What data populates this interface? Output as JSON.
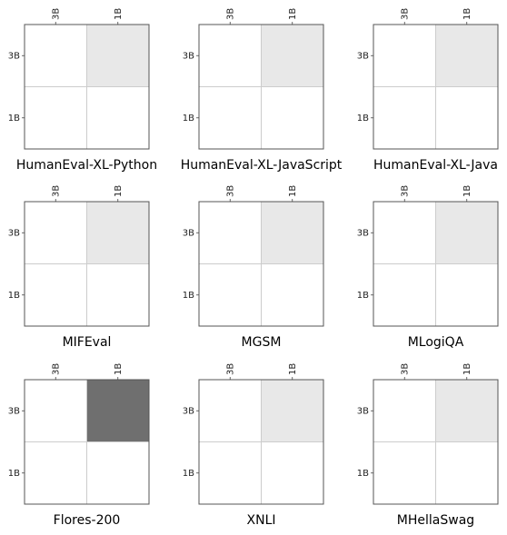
{
  "chart_data": [
    {
      "type": "heatmap",
      "title": "HumanEval-XL-Python",
      "x_categories": [
        "3B",
        "1B"
      ],
      "y_categories": [
        "3B",
        "1B"
      ],
      "values": [
        [
          0,
          0.12
        ],
        [
          0,
          0
        ]
      ],
      "grid": true
    },
    {
      "type": "heatmap",
      "title": "HumanEval-XL-JavaScript",
      "x_categories": [
        "3B",
        "1B"
      ],
      "y_categories": [
        "3B",
        "1B"
      ],
      "values": [
        [
          0,
          0.12
        ],
        [
          0,
          0
        ]
      ],
      "grid": true
    },
    {
      "type": "heatmap",
      "title": "HumanEval-XL-Java",
      "x_categories": [
        "3B",
        "1B"
      ],
      "y_categories": [
        "3B",
        "1B"
      ],
      "values": [
        [
          0,
          0.12
        ],
        [
          0,
          0
        ]
      ],
      "grid": true
    },
    {
      "type": "heatmap",
      "title": "MIFEval",
      "x_categories": [
        "3B",
        "1B"
      ],
      "y_categories": [
        "3B",
        "1B"
      ],
      "values": [
        [
          0,
          0.12
        ],
        [
          0,
          0
        ]
      ],
      "grid": true
    },
    {
      "type": "heatmap",
      "title": "MGSM",
      "x_categories": [
        "3B",
        "1B"
      ],
      "y_categories": [
        "3B",
        "1B"
      ],
      "values": [
        [
          0,
          0.12
        ],
        [
          0,
          0
        ]
      ],
      "grid": true
    },
    {
      "type": "heatmap",
      "title": "MLogiQA",
      "x_categories": [
        "3B",
        "1B"
      ],
      "y_categories": [
        "3B",
        "1B"
      ],
      "values": [
        [
          0,
          0.12
        ],
        [
          0,
          0
        ]
      ],
      "grid": true
    },
    {
      "type": "heatmap",
      "title": "Flores-200",
      "x_categories": [
        "3B",
        "1B"
      ],
      "y_categories": [
        "3B",
        "1B"
      ],
      "values": [
        [
          0,
          0.75
        ],
        [
          0,
          0
        ]
      ],
      "grid": true
    },
    {
      "type": "heatmap",
      "title": "XNLI",
      "x_categories": [
        "3B",
        "1B"
      ],
      "y_categories": [
        "3B",
        "1B"
      ],
      "values": [
        [
          0,
          0.12
        ],
        [
          0,
          0
        ]
      ],
      "grid": true
    },
    {
      "type": "heatmap",
      "title": "MHellaSwag",
      "x_categories": [
        "3B",
        "1B"
      ],
      "y_categories": [
        "3B",
        "1B"
      ],
      "values": [
        [
          0,
          0.12
        ],
        [
          0,
          0
        ]
      ],
      "grid": true
    }
  ],
  "colors": {
    "cell_low": "#ffffff",
    "cell_high": "#3f3f3f",
    "grid": "#cccccc",
    "frame": "#555555"
  }
}
